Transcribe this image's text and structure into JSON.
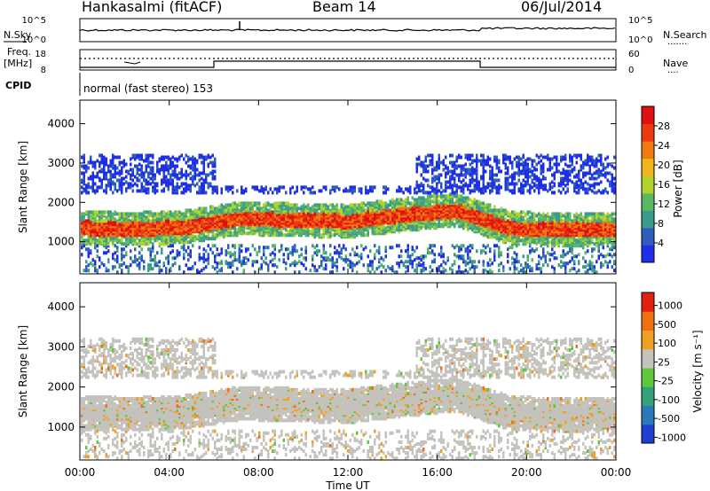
{
  "header": {
    "station": "Hankasalmi (fitACF)",
    "beam": "Beam 14",
    "date": "06/Jul/2014"
  },
  "noise_panel": {
    "left_label": "N.Sky",
    "right_label": "N.Search",
    "right_legend": "·······",
    "left_ticks": [
      "10^5",
      "10^0"
    ],
    "right_ticks": [
      "10^5",
      "10^0"
    ]
  },
  "freq_panel": {
    "left_label_1": "Freq.",
    "left_label_2": "[MHz]",
    "right_label": "Nave",
    "right_legend": "····",
    "left_ticks": [
      "18",
      "8"
    ],
    "right_ticks": [
      "60",
      "0"
    ]
  },
  "cpid_panel": {
    "label": "CPID",
    "text": "normal (fast stereo) 153"
  },
  "x_axis": {
    "label": "Time UT",
    "tick_labels": [
      "00:00",
      "04:00",
      "08:00",
      "12:00",
      "16:00",
      "20:00",
      "00:00"
    ],
    "tick_hours": [
      0,
      4,
      8,
      12,
      16,
      20,
      24
    ],
    "range_hours": [
      0,
      24
    ]
  },
  "chart_data": [
    {
      "type": "heatmap",
      "panel": "power",
      "ylabel": "Slant Range [km]",
      "yticks": [
        1000,
        2000,
        3000,
        4000
      ],
      "ylim": [
        180,
        4600
      ],
      "colorbar": {
        "label": "Power [dB]",
        "tick_labels": [
          "4",
          "8",
          "12",
          "16",
          "20",
          "24",
          "28"
        ],
        "tick_values": [
          4,
          8,
          12,
          16,
          20,
          24,
          28
        ],
        "range": [
          0,
          32
        ],
        "colors": [
          "#1f2fe8",
          "#2d5dbd",
          "#3a9c8c",
          "#5cb860",
          "#b2d42a",
          "#f0b51a",
          "#f07a10",
          "#ec3a10",
          "#e01010"
        ]
      },
      "features": [
        {
          "name": "F-region band",
          "start_h": 0,
          "end_h": 24,
          "center_km": [
            1350,
            1320,
            1380,
            1600,
            1550,
            1520,
            1680,
            1800,
            1350,
            1300,
            1320
          ]
        },
        {
          "name": "upper echoes",
          "start_h": 0,
          "end_h": 24,
          "range_km": [
            2000,
            3150
          ]
        },
        {
          "name": "near-range clutter",
          "start_h": 0,
          "end_h": 24,
          "range_km": [
            180,
            900
          ]
        }
      ]
    },
    {
      "type": "heatmap",
      "panel": "velocity",
      "ylabel": "Slant Range [km]",
      "yticks": [
        1000,
        2000,
        3000,
        4000
      ],
      "ylim": [
        180,
        4600
      ],
      "colorbar": {
        "label": "Velocity [m s⁻¹]",
        "tick_labels": [
          "1000",
          "500",
          "100",
          "25",
          "-25",
          "-100",
          "-500",
          "-1000"
        ],
        "colors": [
          "#1f3fd0",
          "#2a7ab8",
          "#32a27a",
          "#5cc83a",
          "#c4c2bc",
          "#f0a020",
          "#f07010",
          "#e02010"
        ]
      }
    }
  ]
}
